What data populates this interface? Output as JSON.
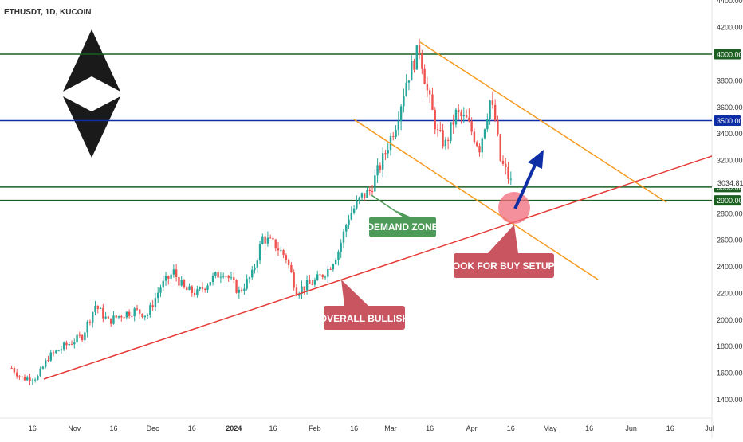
{
  "header": {
    "title": "ETHUSDT, 1D, KUCOIN"
  },
  "chart_data": {
    "type": "candlestick",
    "symbol": "ETHUSDT",
    "interval": "1D",
    "exchange": "KUCOIN",
    "ylim": [
      1300,
      4450
    ],
    "grid": false,
    "y_ticks": [
      "4400.00",
      "4200.00",
      "3800.00",
      "3600.00",
      "3400.00",
      "3200.00",
      "2800.00",
      "2600.00",
      "2400.00",
      "2200.00",
      "2000.00",
      "1800.00",
      "1600.00",
      "1400.00"
    ],
    "x_ticks": [
      {
        "label": "16",
        "date": "2023-10-16"
      },
      {
        "label": "Nov",
        "date": "2023-11-01"
      },
      {
        "label": "16",
        "date": "2023-11-16"
      },
      {
        "label": "Dec",
        "date": "2023-12-01"
      },
      {
        "label": "16",
        "date": "2023-12-16"
      },
      {
        "label": "2024",
        "date": "2024-01-01"
      },
      {
        "label": "16",
        "date": "2024-01-16"
      },
      {
        "label": "Feb",
        "date": "2024-02-01"
      },
      {
        "label": "16",
        "date": "2024-02-16"
      },
      {
        "label": "Mar",
        "date": "2024-03-01"
      },
      {
        "label": "16",
        "date": "2024-03-16"
      },
      {
        "label": "Apr",
        "date": "2024-04-01"
      },
      {
        "label": "16",
        "date": "2024-04-16"
      },
      {
        "label": "May",
        "date": "2024-05-01"
      },
      {
        "label": "16",
        "date": "2024-05-16"
      },
      {
        "label": "Jun",
        "date": "2024-06-01"
      },
      {
        "label": "16",
        "date": "2024-06-16"
      },
      {
        "label": "Jul",
        "date": "2024-07-01"
      }
    ],
    "price_path": [
      [
        "2023-10-08",
        1640
      ],
      [
        "2023-10-12",
        1560
      ],
      [
        "2023-10-18",
        1570
      ],
      [
        "2023-10-22",
        1720
      ],
      [
        "2023-10-28",
        1800
      ],
      [
        "2023-11-04",
        1880
      ],
      [
        "2023-11-09",
        2110
      ],
      [
        "2023-11-14",
        1990
      ],
      [
        "2023-11-19",
        2040
      ],
      [
        "2023-11-24",
        2070
      ],
      [
        "2023-11-29",
        2040
      ],
      [
        "2023-12-04",
        2250
      ],
      [
        "2023-12-09",
        2360
      ],
      [
        "2023-12-13",
        2230
      ],
      [
        "2023-12-18",
        2200
      ],
      [
        "2023-12-23",
        2300
      ],
      [
        "2023-12-28",
        2370
      ],
      [
        "2024-01-03",
        2210
      ],
      [
        "2024-01-08",
        2340
      ],
      [
        "2024-01-12",
        2620
      ],
      [
        "2024-01-17",
        2560
      ],
      [
        "2024-01-21",
        2470
      ],
      [
        "2024-01-25",
        2220
      ],
      [
        "2024-02-01",
        2290
      ],
      [
        "2024-02-06",
        2380
      ],
      [
        "2024-02-10",
        2520
      ],
      [
        "2024-02-14",
        2780
      ],
      [
        "2024-02-19",
        2930
      ],
      [
        "2024-02-22",
        2970
      ],
      [
        "2024-02-27",
        3210
      ],
      [
        "2024-03-03",
        3480
      ],
      [
        "2024-03-07",
        3800
      ],
      [
        "2024-03-12",
        4050
      ],
      [
        "2024-03-15",
        3720
      ],
      [
        "2024-03-19",
        3400
      ],
      [
        "2024-03-22",
        3320
      ],
      [
        "2024-03-26",
        3550
      ],
      [
        "2024-03-30",
        3500
      ],
      [
        "2024-04-04",
        3300
      ],
      [
        "2024-04-08",
        3650
      ],
      [
        "2024-04-10",
        3500
      ],
      [
        "2024-04-12",
        3200
      ],
      [
        "2024-04-16",
        3035
      ]
    ],
    "last_price": "3034.81",
    "levels": [
      {
        "price": 4000,
        "label": "4000.00",
        "color": "#1b5e20"
      },
      {
        "price": 3500,
        "label": "3500.00",
        "color": "#0d2ea5"
      },
      {
        "price": 3000,
        "label": "3000.00",
        "color": "#1b5e20"
      },
      {
        "price": 2900,
        "label": "2900.00",
        "color": "#1b5e20"
      }
    ],
    "annotations": [
      {
        "text": "DEMAND ZONE",
        "color": "#4e9a59"
      },
      {
        "text": "LOOK FOR BUY SETUPS",
        "color": "#c95560"
      },
      {
        "text": "OVERALL BULLISH",
        "color": "#c95560"
      }
    ],
    "trendline_color": "#e53935",
    "channel_color": "#f59a1f",
    "arrow_color": "#0d2ea5",
    "up_color": "#26a69a",
    "down_color": "#ef5350"
  },
  "logo": {
    "icon": "ethereum-icon",
    "color": "#1a1a1a"
  }
}
